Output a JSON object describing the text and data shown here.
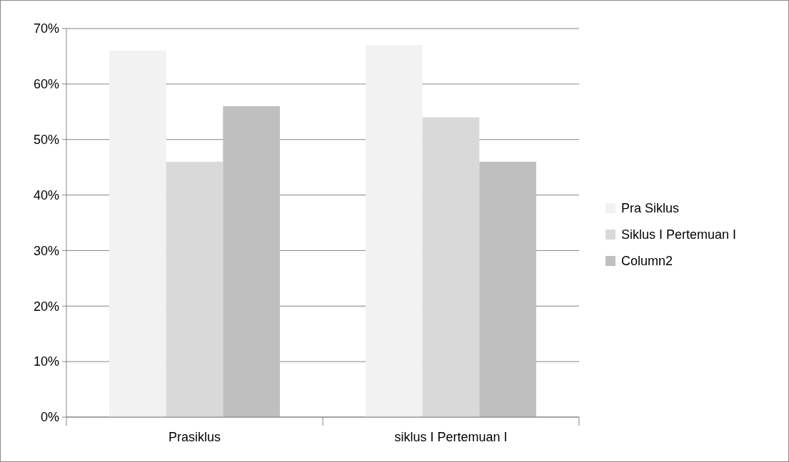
{
  "chart_data": {
    "type": "bar",
    "categories": [
      "Prasiklus",
      "siklus I Pertemuan I"
    ],
    "series": [
      {
        "name": "Pra Siklus",
        "color": "#f2f2f2",
        "values": [
          66,
          67
        ]
      },
      {
        "name": "Siklus I Pertemuan I",
        "color": "#d9d9d9",
        "values": [
          46,
          54
        ]
      },
      {
        "name": "Column2",
        "color": "#bfbfbf",
        "values": [
          56,
          46
        ]
      }
    ],
    "ylim": [
      0,
      70
    ],
    "yticks": [
      {
        "value": 0,
        "label": "0%"
      },
      {
        "value": 10,
        "label": "10%"
      },
      {
        "value": 20,
        "label": "20%"
      },
      {
        "value": 30,
        "label": "30%"
      },
      {
        "value": 40,
        "label": "40%"
      },
      {
        "value": 50,
        "label": "50%"
      },
      {
        "value": 60,
        "label": "60%"
      },
      {
        "value": 70,
        "label": "70%"
      }
    ],
    "grid": "y",
    "legend": "right"
  }
}
